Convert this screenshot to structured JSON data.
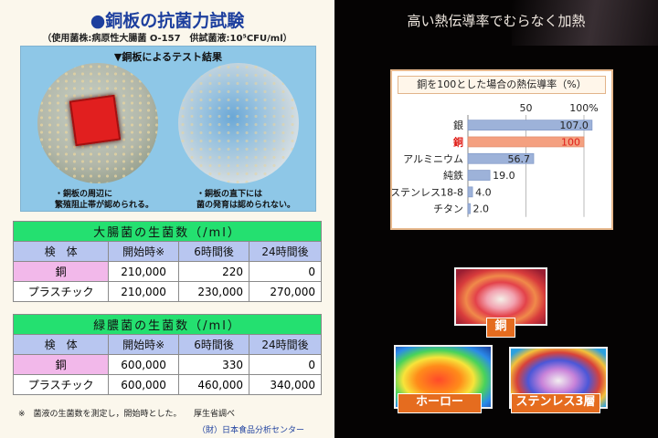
{
  "left_panel": {
    "title_mark": "●",
    "title": "銅板の抗菌力試験",
    "subtitle": "（使用菌株:病原性大腸菌 O-157　供試菌液:10⁵CFU/ml）",
    "photo_caption": "▼銅板によるテスト結果",
    "note_left": [
      "・銅板の周辺に",
      "繁殖阻止帯が認められる。"
    ],
    "note_right": [
      "・銅板の直下には",
      "菌の発育は認められない。"
    ],
    "tables": [
      {
        "heading": "大腸菌の生菌数（/ml）",
        "columns": [
          "検　体",
          "開始時※",
          "6時間後",
          "24時間後"
        ],
        "rows": [
          {
            "label": "銅",
            "start": "210,000",
            "h6": "220",
            "h24": "0"
          },
          {
            "label": "プラスチック",
            "start": "210,000",
            "h6": "230,000",
            "h24": "270,000"
          }
        ]
      },
      {
        "heading": "緑膿菌の生菌数（/ml）",
        "columns": [
          "検　体",
          "開始時※",
          "6時間後",
          "24時間後"
        ],
        "rows": [
          {
            "label": "銅",
            "start": "600,000",
            "h6": "330",
            "h24": "0"
          },
          {
            "label": "プラスチック",
            "start": "600,000",
            "h6": "460,000",
            "h24": "340,000"
          }
        ]
      }
    ],
    "footnote": "※　菌液の生菌数を測定し，開始時とした。　　厚生省調べ",
    "source": "（財）日本食品分析センター"
  },
  "right_panel": {
    "title": "高い熱伝導率でむらなく加熱",
    "thermal_labels": [
      "銅",
      "ホーロー",
      "ステンレス3層"
    ]
  },
  "chart_data": {
    "type": "bar",
    "title": "銅を100とした場合の熱伝導率（%）",
    "categories": [
      "銀",
      "銅",
      "アルミニウム",
      "純鉄",
      "ステンレス18-8",
      "チタン"
    ],
    "values": [
      107.0,
      100,
      56.7,
      19.0,
      4.0,
      2.0
    ],
    "value_labels": [
      "107.0",
      "100",
      "56.7",
      "19.0",
      "4.0",
      "2.0"
    ],
    "highlight_category": "銅",
    "tick_labels": [
      "50",
      "100%"
    ],
    "xlim": [
      0,
      100
    ],
    "colors": {
      "bar": "#9db2d9",
      "highlight": "#f4a080",
      "highlight_text": "#e0201a"
    }
  }
}
